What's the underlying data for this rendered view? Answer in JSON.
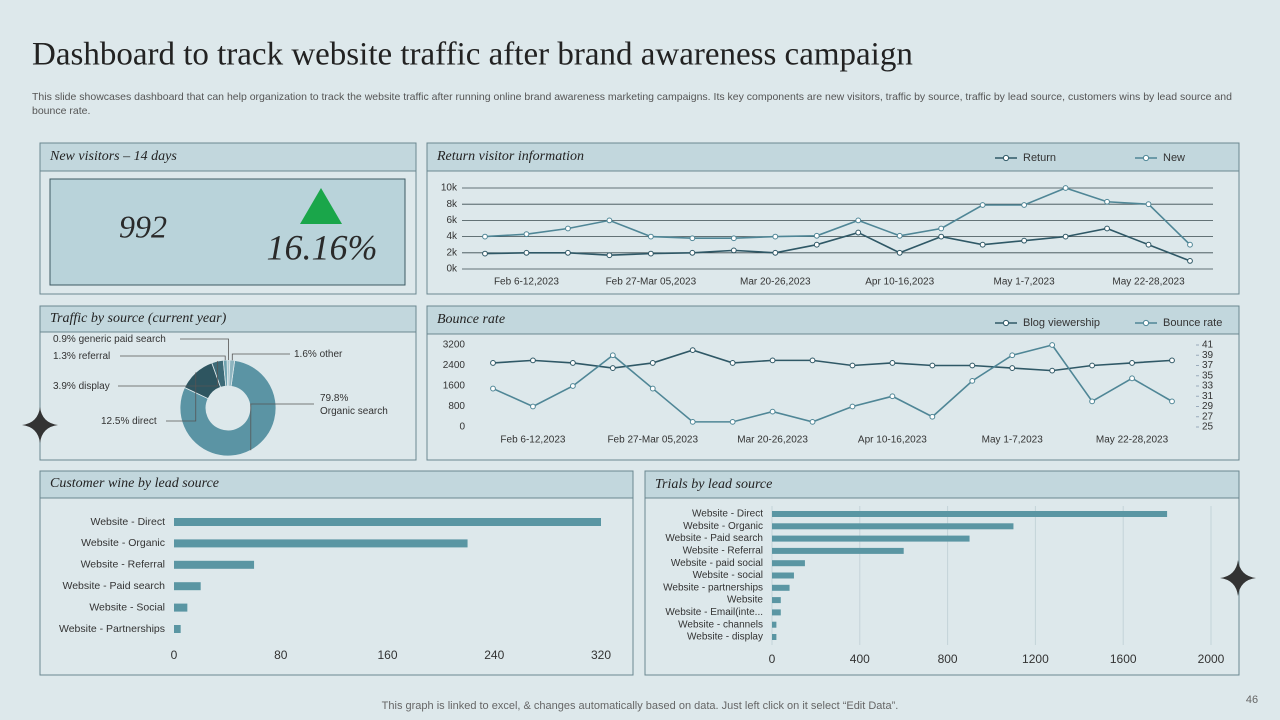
{
  "title": "Dashboard to track website traffic after brand awareness campaign",
  "subtitle": "This slide showcases dashboard that can help organization to track the website traffic after running online brand awareness marketing campaigns. Its key components are new visitors, traffic by source, traffic by lead source, customers wins by lead source and bounce rate.",
  "kpi": {
    "title": "New visitors – 14 days",
    "value": "992",
    "change": "16.16%"
  },
  "chart_data": [
    {
      "type": "line",
      "title": "Return visitor information",
      "categories": [
        null,
        "Feb 6-12,2023",
        null,
        null,
        "Feb 27-Mar 05,2023",
        null,
        null,
        "Mar 20-26,2023",
        null,
        null,
        "Apr 10-16,2023",
        null,
        null,
        "May 1-7,2023",
        null,
        null,
        "May 22-28,2023",
        null
      ],
      "series": [
        {
          "name": "Return",
          "color": "#2f5866",
          "values": [
            1900,
            2000,
            2000,
            1700,
            1900,
            2000,
            2300,
            2000,
            3000,
            4500,
            2000,
            4000,
            3000,
            3500,
            4000,
            5000,
            3000,
            1000
          ]
        },
        {
          "name": "New",
          "color": "#4f8696",
          "values": [
            4000,
            4300,
            5000,
            6000,
            4000,
            3800,
            3800,
            4000,
            4100,
            6000,
            4100,
            5000,
            7900,
            7900,
            10000,
            8300,
            8000,
            3000
          ]
        }
      ],
      "ylim": [
        0,
        10000
      ],
      "yticks": [
        {
          "value": 0,
          "label": "0k"
        },
        {
          "value": 2000,
          "label": "2k"
        },
        {
          "value": 4000,
          "label": "4k"
        },
        {
          "value": 6000,
          "label": "6k"
        },
        {
          "value": 8000,
          "label": "8k"
        },
        {
          "value": 10000,
          "label": "10k"
        }
      ],
      "grid": true
    },
    {
      "type": "donut",
      "title": "Traffic by source (current year)",
      "categories": [
        "Organic search",
        "direct",
        "display",
        "referral",
        "generic paid search",
        "other"
      ],
      "values": [
        79.8,
        12.5,
        3.9,
        1.3,
        0.9,
        1.6
      ],
      "value_labels": [
        "79.8%",
        "12.5%",
        "3.9%",
        "1.3%",
        "0.9%",
        "1.6%"
      ],
      "colors": [
        "#5b94a4",
        "#2e5560",
        "#3d6b78",
        "#6fa3b0",
        "#a9c7cf",
        "#8eb5c0"
      ]
    },
    {
      "type": "line",
      "title": "Bounce rate",
      "categories": [
        null,
        "Feb 6-12,2023",
        null,
        null,
        "Feb 27-Mar 05,2023",
        null,
        null,
        "Mar 20-26,2023",
        null,
        null,
        "Apr 10-16,2023",
        null,
        null,
        "May 1-7,2023",
        null,
        null,
        "May 22-28,2023",
        null
      ],
      "series": [
        {
          "name": "Blog viewership",
          "color": "#2f5866",
          "values": [
            2500,
            2600,
            2500,
            2300,
            2500,
            3000,
            2500,
            2600,
            2600,
            2400,
            2500,
            2400,
            2400,
            2300,
            2200,
            2400,
            2500,
            2600
          ]
        },
        {
          "name": "Bounce rate",
          "color": "#4f8696",
          "axis": "y2",
          "values": [
            32.5,
            29,
            33,
            39,
            32.5,
            26,
            26,
            28,
            26,
            29,
            31,
            27,
            34,
            39,
            41,
            30,
            34.5,
            30
          ]
        }
      ],
      "ylim": [
        0,
        3200
      ],
      "yticks": [
        0,
        800,
        1600,
        2400,
        3200
      ],
      "y2lim": [
        25,
        41
      ],
      "y2ticks": [
        25,
        27,
        29,
        31,
        33,
        35,
        37,
        39,
        41
      ],
      "grid": false
    },
    {
      "type": "bar",
      "orientation": "horizontal",
      "title": "Customer wine by lead source",
      "categories": [
        "Website - Direct",
        "Website - Organic",
        "Website - Referral",
        "Website - Paid search",
        "Website - Social",
        "Website - Partnerships"
      ],
      "values": [
        320,
        220,
        60,
        20,
        10,
        5
      ],
      "color": "#5a96a3",
      "xlim": [
        0,
        320
      ],
      "xticks": [
        0,
        80,
        160,
        240,
        320
      ],
      "grid": false
    },
    {
      "type": "bar",
      "orientation": "horizontal",
      "title": "Trials by lead source",
      "categories": [
        "Website - Direct",
        "Website - Organic",
        "Website - Paid search",
        "Website - Referral",
        "Website - paid social",
        "Website - social",
        "Website - partnerships",
        "Website",
        "Website - Email(inte...",
        "Website - channels",
        "Website - display"
      ],
      "values": [
        1800,
        1100,
        900,
        600,
        150,
        100,
        80,
        40,
        40,
        20,
        20
      ],
      "color": "#5a96a3",
      "xlim": [
        0,
        2000
      ],
      "xticks": [
        0,
        400,
        800,
        1200,
        1600,
        2000
      ],
      "grid": true
    }
  ],
  "footer": "This graph is linked to excel, & changes automatically based on data. Just left click on it select “Edit Data”.",
  "page_number": "46"
}
